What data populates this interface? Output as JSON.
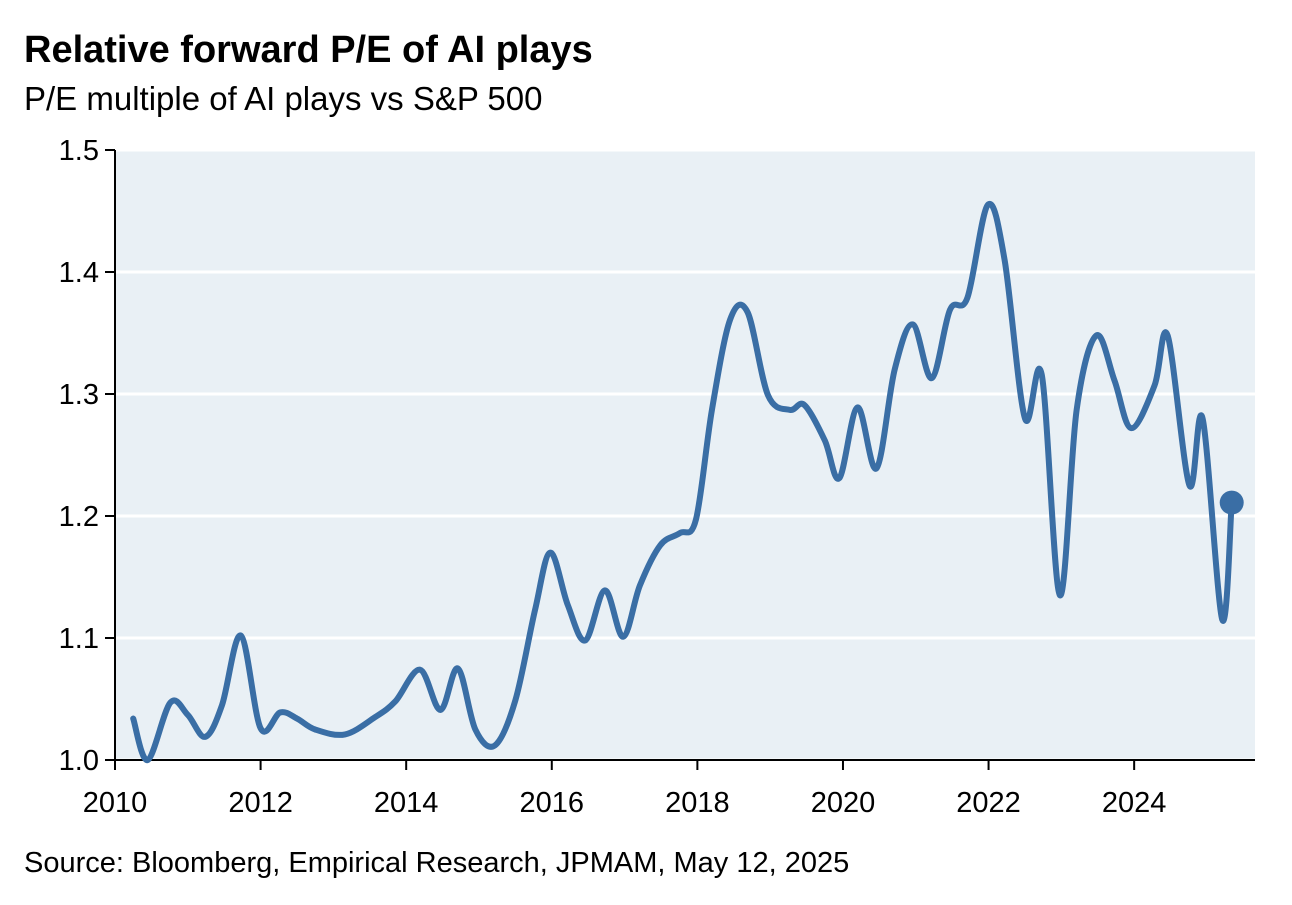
{
  "chart_data": {
    "type": "line",
    "title": "Relative forward P/E of AI plays",
    "subtitle": "P/E multiple of AI plays vs S&P 500",
    "source": "Source: Bloomberg, Empirical Research, JPMAM, May 12, 2025",
    "x": [
      2010.25,
      2010.45,
      2010.76,
      2011.0,
      2011.24,
      2011.47,
      2011.73,
      2012.0,
      2012.27,
      2012.5,
      2012.75,
      2013.16,
      2013.57,
      2013.85,
      2014.19,
      2014.47,
      2014.71,
      2014.95,
      2015.22,
      2015.5,
      2015.77,
      2015.98,
      2016.22,
      2016.46,
      2016.73,
      2016.98,
      2017.21,
      2017.49,
      2017.76,
      2017.98,
      2018.2,
      2018.45,
      2018.69,
      2018.97,
      2019.27,
      2019.47,
      2019.75,
      2019.95,
      2020.2,
      2020.46,
      2020.71,
      2020.96,
      2021.22,
      2021.47,
      2021.71,
      2021.99,
      2022.22,
      2022.5,
      2022.73,
      2022.98,
      2023.21,
      2023.48,
      2023.73,
      2023.96,
      2024.28,
      2024.46,
      2024.76,
      2024.94,
      2025.21,
      2025.34
    ],
    "series": [
      {
        "name": "Relative forward P/E",
        "color": "#3a6ea5",
        "values": [
          1.034,
          1.0,
          1.047,
          1.037,
          1.019,
          1.045,
          1.102,
          1.026,
          1.039,
          1.034,
          1.025,
          1.021,
          1.035,
          1.048,
          1.074,
          1.041,
          1.075,
          1.025,
          1.012,
          1.049,
          1.123,
          1.17,
          1.127,
          1.098,
          1.139,
          1.101,
          1.143,
          1.176,
          1.186,
          1.197,
          1.287,
          1.361,
          1.367,
          1.299,
          1.287,
          1.291,
          1.262,
          1.231,
          1.289,
          1.239,
          1.32,
          1.357,
          1.313,
          1.369,
          1.379,
          1.455,
          1.41,
          1.28,
          1.316,
          1.135,
          1.287,
          1.348,
          1.311,
          1.272,
          1.307,
          1.348,
          1.225,
          1.28,
          1.115,
          1.211
        ]
      }
    ],
    "xlim": [
      2010,
      2025.66
    ],
    "xticks": [
      2010,
      2012,
      2014,
      2016,
      2018,
      2020,
      2022,
      2024
    ],
    "ylim": [
      1.0,
      1.5
    ],
    "yticks": [
      {
        "value": 1.0,
        "label": "1.0"
      },
      1.1,
      1.2,
      1.3,
      1.4,
      1.5
    ],
    "grid": true,
    "end_marker": true
  }
}
